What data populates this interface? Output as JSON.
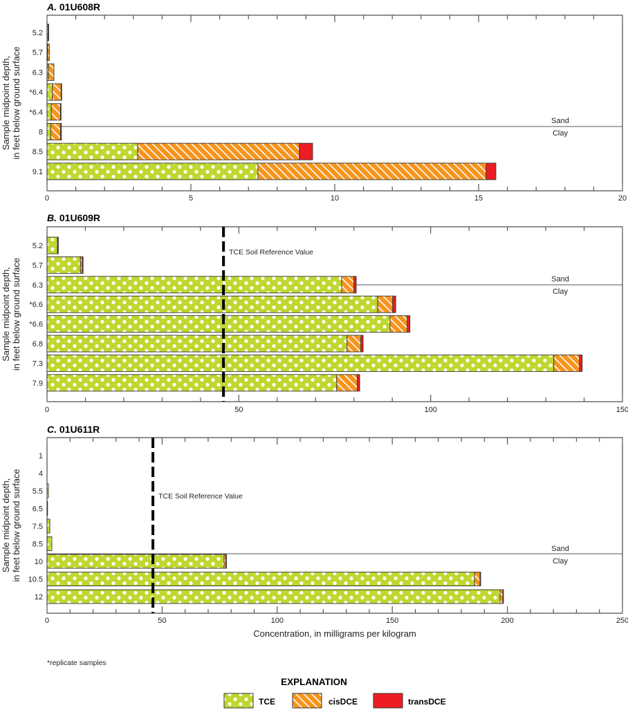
{
  "colors": {
    "TCE": "#c0d730",
    "cisDCE": "#f7941d",
    "transDCE": "#ed1c24"
  },
  "xlabel": "Concentration, in milligrams per kilogram",
  "ylabel_line1": "Sample midpoint depth,",
  "ylabel_line2": "in feet below ground surface",
  "footnote": "*replicate samples",
  "legend": {
    "title": "EXPLANATION",
    "items": [
      {
        "label": "TCE",
        "pattern": "dots"
      },
      {
        "label": "cisDCE",
        "pattern": "hatch"
      },
      {
        "label": "transDCE",
        "pattern": "solid"
      }
    ]
  },
  "chart_data": [
    {
      "type": "bar",
      "orientation": "horizontal",
      "stacked": true,
      "title_prefix": "A.",
      "title": "01U608R",
      "categories": [
        "5.2",
        "5.7",
        "6.3",
        "*6.4",
        "*6.4",
        "8",
        "8.5",
        "9.1"
      ],
      "series": [
        {
          "name": "TCE",
          "values": [
            0.04,
            0.02,
            0.05,
            0.18,
            0.15,
            0.13,
            3.15,
            7.33
          ]
        },
        {
          "name": "cisDCE",
          "values": [
            0.01,
            0.06,
            0.19,
            0.31,
            0.32,
            0.34,
            5.62,
            7.93
          ]
        },
        {
          "name": "transDCE",
          "values": [
            0,
            0,
            0,
            0.02,
            0.01,
            0.03,
            0.46,
            0.34
          ]
        }
      ],
      "xlim": [
        0,
        20
      ],
      "xticks": [
        0,
        5,
        10,
        15,
        20
      ],
      "minor_tick_step": 1,
      "reference_line": null,
      "boundary": {
        "upper": "Sand",
        "lower": "Clay"
      }
    },
    {
      "type": "bar",
      "orientation": "horizontal",
      "stacked": true,
      "title_prefix": "B.",
      "title": "01U609R",
      "categories": [
        "5.2",
        "5.7",
        "6.3",
        "*6.6",
        "*6.6",
        "6.8",
        "7.3",
        "7.9"
      ],
      "series": [
        {
          "name": "TCE",
          "values": [
            2.7,
            8.7,
            76.8,
            86.2,
            89.4,
            78.2,
            132.1,
            75.5
          ]
        },
        {
          "name": "cisDCE",
          "values": [
            0.1,
            0.5,
            3.2,
            3.9,
            4.5,
            3.6,
            6.7,
            5.4
          ]
        },
        {
          "name": "transDCE",
          "values": [
            0.1,
            0.2,
            0.6,
            0.8,
            0.7,
            0.6,
            0.7,
            0.6
          ]
        }
      ],
      "xlim": [
        0,
        150
      ],
      "xticks": [
        0,
        50,
        100,
        150
      ],
      "minor_tick_step": 10,
      "reference_line": {
        "value": 46,
        "label": "TCE Soil Reference Value"
      },
      "boundary": {
        "upper": "Sand",
        "lower": "Clay"
      }
    },
    {
      "type": "bar",
      "orientation": "horizontal",
      "stacked": true,
      "title_prefix": "C.",
      "title": "01U611R",
      "categories": [
        "1",
        "4",
        "5.5",
        "6.5",
        "7.5",
        "8.5",
        "10",
        "10.5",
        "12"
      ],
      "series": [
        {
          "name": "TCE",
          "values": [
            0,
            0,
            0.6,
            0.2,
            1.2,
            2.1,
            76.9,
            185.7,
            196.8
          ]
        },
        {
          "name": "cisDCE",
          "values": [
            0,
            0,
            0,
            0,
            0,
            0,
            0.8,
            2.4,
            1.2
          ]
        },
        {
          "name": "transDCE",
          "values": [
            0,
            0,
            0,
            0,
            0,
            0,
            0.1,
            0.3,
            0.3
          ]
        }
      ],
      "xlim": [
        0,
        250
      ],
      "xticks": [
        0,
        50,
        100,
        150,
        200,
        250
      ],
      "minor_tick_step": 10,
      "reference_line": {
        "value": 46,
        "label": "TCE Soil Reference Value"
      },
      "boundary": {
        "upper": "Sand",
        "lower": "Clay"
      }
    }
  ]
}
